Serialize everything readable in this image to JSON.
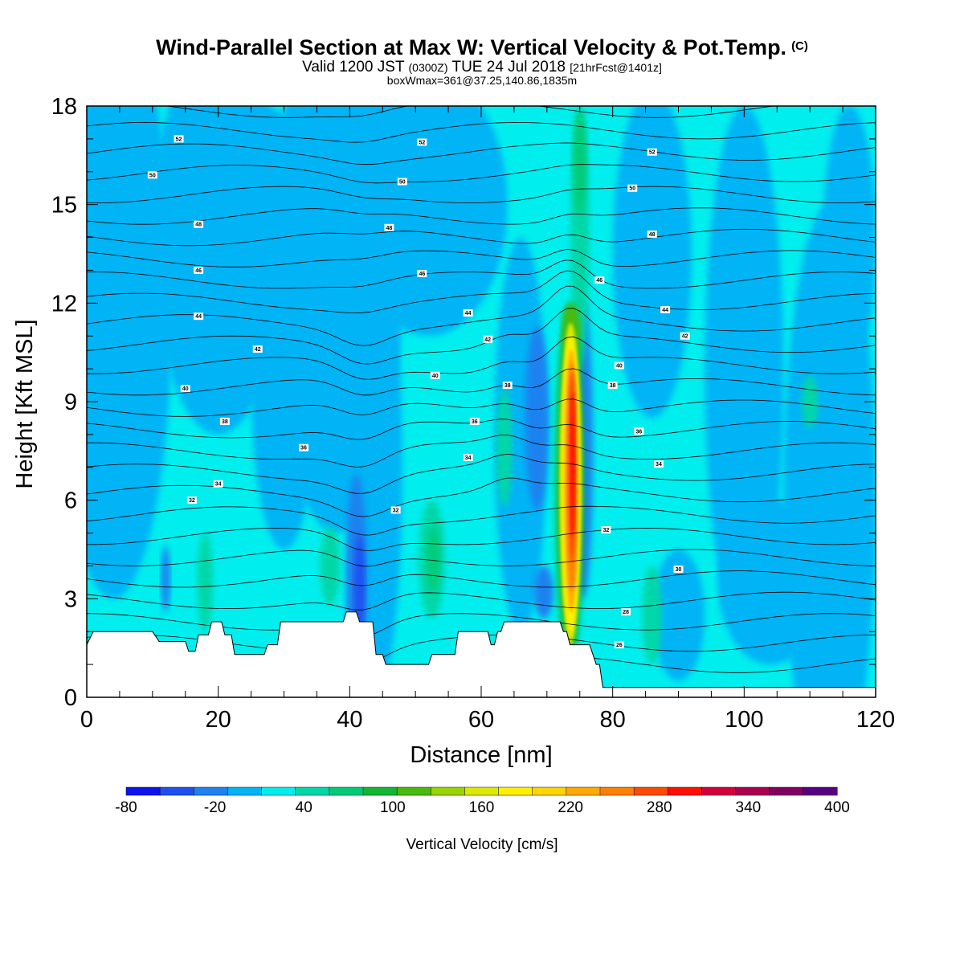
{
  "title": {
    "main": "Wind-Parallel Section at Max W: Vertical Velocity & Pot.Temp.",
    "main_mark": "(C)",
    "sub_a": "Valid 1200 JST",
    "sub_b": "(0300Z)",
    "sub_c": "TUE 24 Jul 2018",
    "sub_d": "[21hrFcst@1401z]",
    "line3": "boxWmax=361@37.25,140.86,1835m"
  },
  "chart_data": {
    "type": "heatmap",
    "xlabel": "Distance [nm]",
    "ylabel": "Height [Kft MSL]",
    "xlim": [
      0,
      120
    ],
    "ylim": [
      0,
      18
    ],
    "x_ticks": [
      0,
      20,
      40,
      60,
      80,
      100,
      120
    ],
    "y_ticks": [
      0,
      3,
      6,
      9,
      12,
      15,
      18
    ],
    "colorbar": {
      "label": "Vertical Velocity [cm/s]",
      "tick_labels": [
        "-80",
        "-20",
        "40",
        "100",
        "160",
        "220",
        "280",
        "340",
        "400"
      ],
      "colors": [
        "#0a14ee",
        "#1e50f0",
        "#1e82f0",
        "#00b4f5",
        "#00eeee",
        "#00d7a8",
        "#00cc78",
        "#11b733",
        "#4abb0c",
        "#99d400",
        "#dcea00",
        "#fff000",
        "#ffd500",
        "#ffaa00",
        "#ff8000",
        "#ff4a00",
        "#ff0d00",
        "#d2003c",
        "#aa0050",
        "#820064",
        "#580082"
      ]
    },
    "terrain_kft": [
      [
        0,
        1.6
      ],
      [
        1,
        2.0
      ],
      [
        10,
        2.0
      ],
      [
        11,
        1.7
      ],
      [
        15,
        1.7
      ],
      [
        15.5,
        1.4
      ],
      [
        16.5,
        1.4
      ],
      [
        17,
        1.9
      ],
      [
        18.5,
        1.9
      ],
      [
        19,
        2.3
      ],
      [
        20.5,
        2.3
      ],
      [
        21,
        1.9
      ],
      [
        22,
        1.9
      ],
      [
        22.5,
        1.3
      ],
      [
        27,
        1.3
      ],
      [
        27.5,
        1.6
      ],
      [
        29,
        1.6
      ],
      [
        29.5,
        2.3
      ],
      [
        39,
        2.3
      ],
      [
        39.5,
        2.6
      ],
      [
        41,
        2.6
      ],
      [
        41.5,
        2.3
      ],
      [
        43.5,
        2.3
      ],
      [
        44,
        1.3
      ],
      [
        45,
        1.3
      ],
      [
        45.5,
        1.0
      ],
      [
        52,
        1.0
      ],
      [
        52.5,
        1.3
      ],
      [
        56,
        1.3
      ],
      [
        56.5,
        2.0
      ],
      [
        61,
        2.0
      ],
      [
        61.5,
        1.6
      ],
      [
        62,
        1.6
      ],
      [
        62.5,
        2.0
      ],
      [
        63,
        2.0
      ],
      [
        63.5,
        2.3
      ],
      [
        72,
        2.3
      ],
      [
        72.5,
        2.0
      ],
      [
        73,
        2.0
      ],
      [
        73.5,
        1.6
      ],
      [
        76.5,
        1.6
      ],
      [
        77,
        1.3
      ],
      [
        77.5,
        1.0
      ],
      [
        78,
        1.0
      ],
      [
        78.5,
        0.3
      ],
      [
        120,
        0.3
      ]
    ],
    "theta_labels": [
      {
        "x": 14,
        "y": 17.0,
        "text": "52"
      },
      {
        "x": 51,
        "y": 16.9,
        "text": "52"
      },
      {
        "x": 86,
        "y": 16.6,
        "text": "52"
      },
      {
        "x": 10,
        "y": 15.9,
        "text": "50"
      },
      {
        "x": 48,
        "y": 15.7,
        "text": "50"
      },
      {
        "x": 83,
        "y": 15.5,
        "text": "50"
      },
      {
        "x": 17,
        "y": 14.4,
        "text": "48"
      },
      {
        "x": 46,
        "y": 14.3,
        "text": "48"
      },
      {
        "x": 86,
        "y": 14.1,
        "text": "48"
      },
      {
        "x": 17,
        "y": 13.0,
        "text": "46"
      },
      {
        "x": 51,
        "y": 12.9,
        "text": "46"
      },
      {
        "x": 78,
        "y": 12.7,
        "text": "46"
      },
      {
        "x": 17,
        "y": 11.6,
        "text": "44"
      },
      {
        "x": 58,
        "y": 11.7,
        "text": "44"
      },
      {
        "x": 88,
        "y": 11.8,
        "text": "44"
      },
      {
        "x": 26,
        "y": 10.6,
        "text": "42"
      },
      {
        "x": 61,
        "y": 10.9,
        "text": "42"
      },
      {
        "x": 91,
        "y": 11.0,
        "text": "42"
      },
      {
        "x": 15,
        "y": 9.4,
        "text": "40"
      },
      {
        "x": 53,
        "y": 9.8,
        "text": "40"
      },
      {
        "x": 81,
        "y": 10.1,
        "text": "40"
      },
      {
        "x": 21,
        "y": 8.4,
        "text": "38"
      },
      {
        "x": 64,
        "y": 9.5,
        "text": "38"
      },
      {
        "x": 80,
        "y": 9.5,
        "text": "38"
      },
      {
        "x": 33,
        "y": 7.6,
        "text": "36"
      },
      {
        "x": 59,
        "y": 8.4,
        "text": "36"
      },
      {
        "x": 84,
        "y": 8.1,
        "text": "36"
      },
      {
        "x": 20,
        "y": 6.5,
        "text": "34"
      },
      {
        "x": 58,
        "y": 7.3,
        "text": "34"
      },
      {
        "x": 87,
        "y": 7.1,
        "text": "34"
      },
      {
        "x": 16,
        "y": 6.0,
        "text": "32"
      },
      {
        "x": 47,
        "y": 5.7,
        "text": "32"
      },
      {
        "x": 79,
        "y": 5.1,
        "text": "32"
      },
      {
        "x": 90,
        "y": 3.9,
        "text": "30"
      },
      {
        "x": 82,
        "y": 2.6,
        "text": "28"
      },
      {
        "x": 81,
        "y": 1.6,
        "text": "26"
      }
    ]
  }
}
